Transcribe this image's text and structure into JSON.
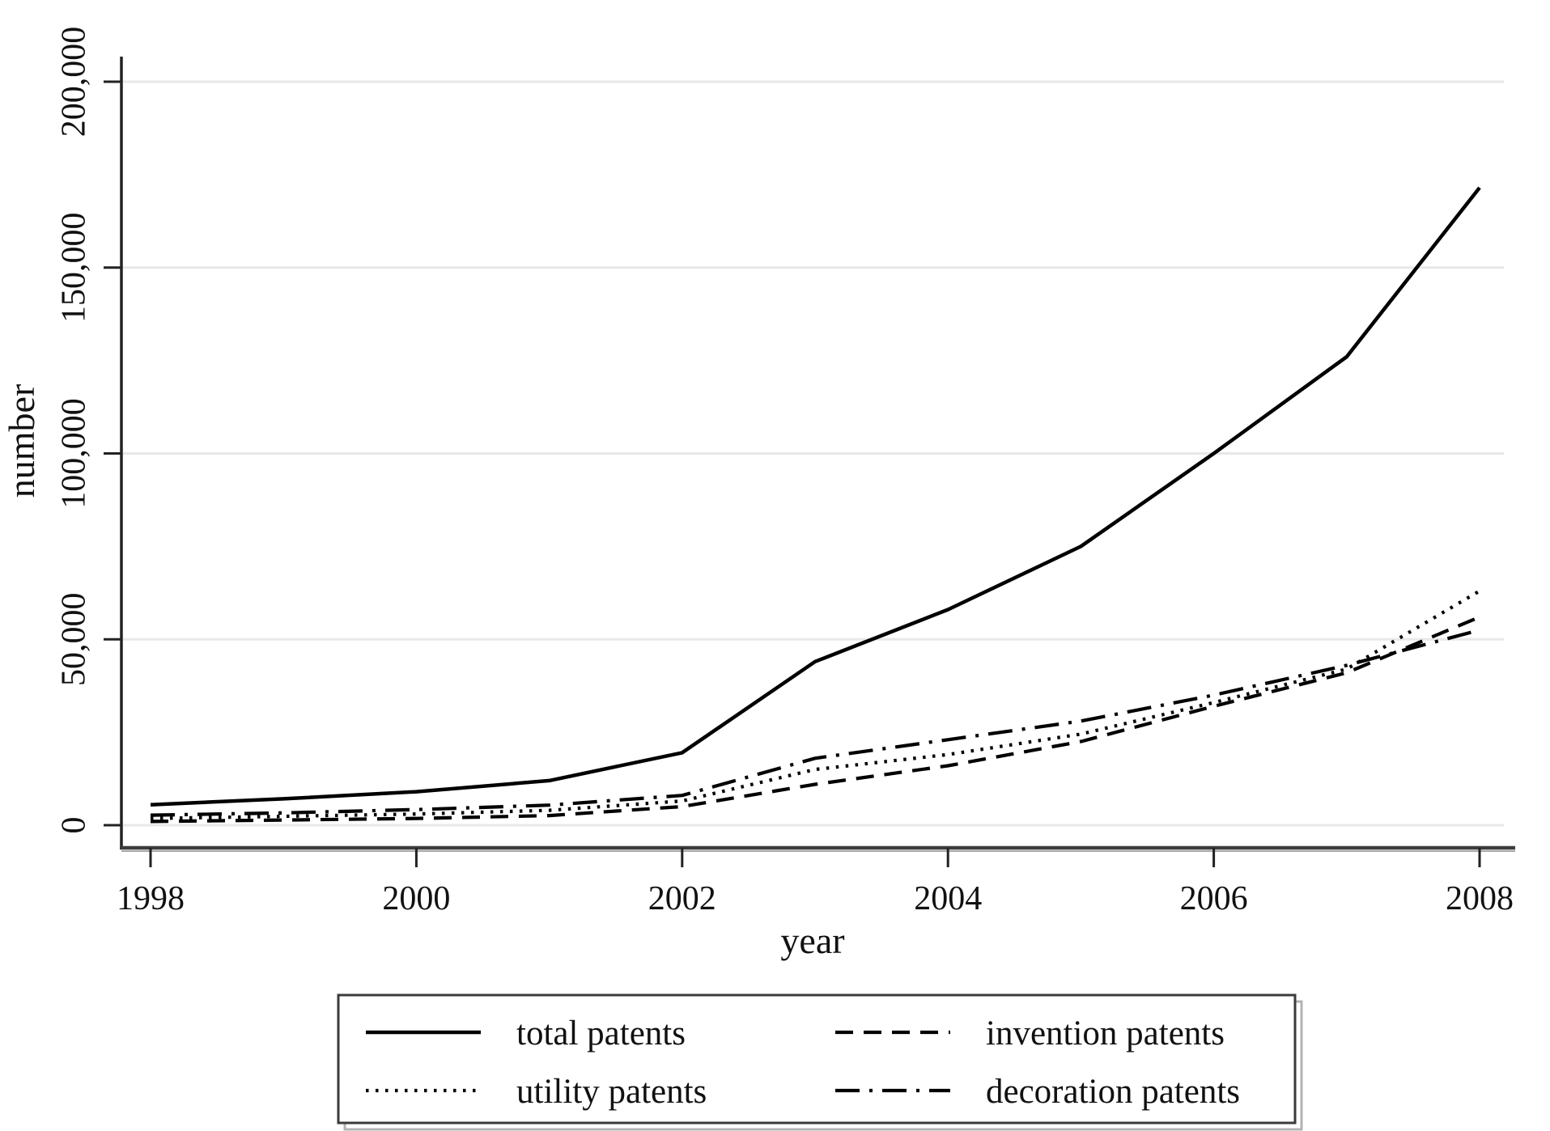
{
  "figure": {
    "y_axis_label": "number",
    "x_axis_label": "year",
    "y_ticks": [
      "0",
      "50,000",
      "100,000",
      "150,000",
      "200,000"
    ],
    "x_ticks": [
      "1998",
      "2000",
      "2002",
      "2004",
      "2006",
      "2008"
    ]
  },
  "legend": {
    "items": [
      {
        "label": "total patents",
        "style": "solid"
      },
      {
        "label": "invention patents",
        "style": "dashed"
      },
      {
        "label": "utility patents",
        "style": "dotted"
      },
      {
        "label": "decoration patents",
        "style": "dashdot"
      }
    ]
  },
  "chart_data": {
    "type": "line",
    "title": "",
    "xlabel": "year",
    "ylabel": "number",
    "x": [
      1998,
      1999,
      2000,
      2001,
      2002,
      2003,
      2004,
      2005,
      2006,
      2007,
      2008
    ],
    "series": [
      {
        "name": "total patents",
        "style": "solid",
        "values": [
          5500,
          7100,
          9000,
          12000,
          19500,
          44000,
          58000,
          75000,
          100000,
          126000,
          171500
        ]
      },
      {
        "name": "invention patents",
        "style": "dashed",
        "values": [
          1000,
          1400,
          1800,
          2600,
          5000,
          11000,
          16000,
          22500,
          32000,
          41000,
          56000
        ]
      },
      {
        "name": "utility patents",
        "style": "dotted",
        "values": [
          1800,
          2400,
          3000,
          4000,
          6500,
          15000,
          19000,
          24500,
          33000,
          42000,
          63000
        ]
      },
      {
        "name": "decoration patents",
        "style": "dashdot",
        "values": [
          2700,
          3300,
          4200,
          5400,
          8000,
          18000,
          23000,
          28000,
          35000,
          43000,
          52500
        ]
      }
    ],
    "xlim": [
      1997.8,
      2008.2
    ],
    "ylim": [
      0,
      200000
    ],
    "x_tick_values": [
      1998,
      2000,
      2002,
      2004,
      2006,
      2008
    ],
    "y_tick_values": [
      0,
      50000,
      100000,
      150000,
      200000
    ],
    "grid": "horizontal-only",
    "legend_position": "bottom-box-2col"
  },
  "colors": {
    "line": "#000000",
    "grid": "#e8e8e8",
    "axis": "#333333",
    "text": "#111111",
    "background": "#ffffff",
    "legend_border": "#3b3b3b",
    "legend_shadow": "#b3b3b3"
  }
}
